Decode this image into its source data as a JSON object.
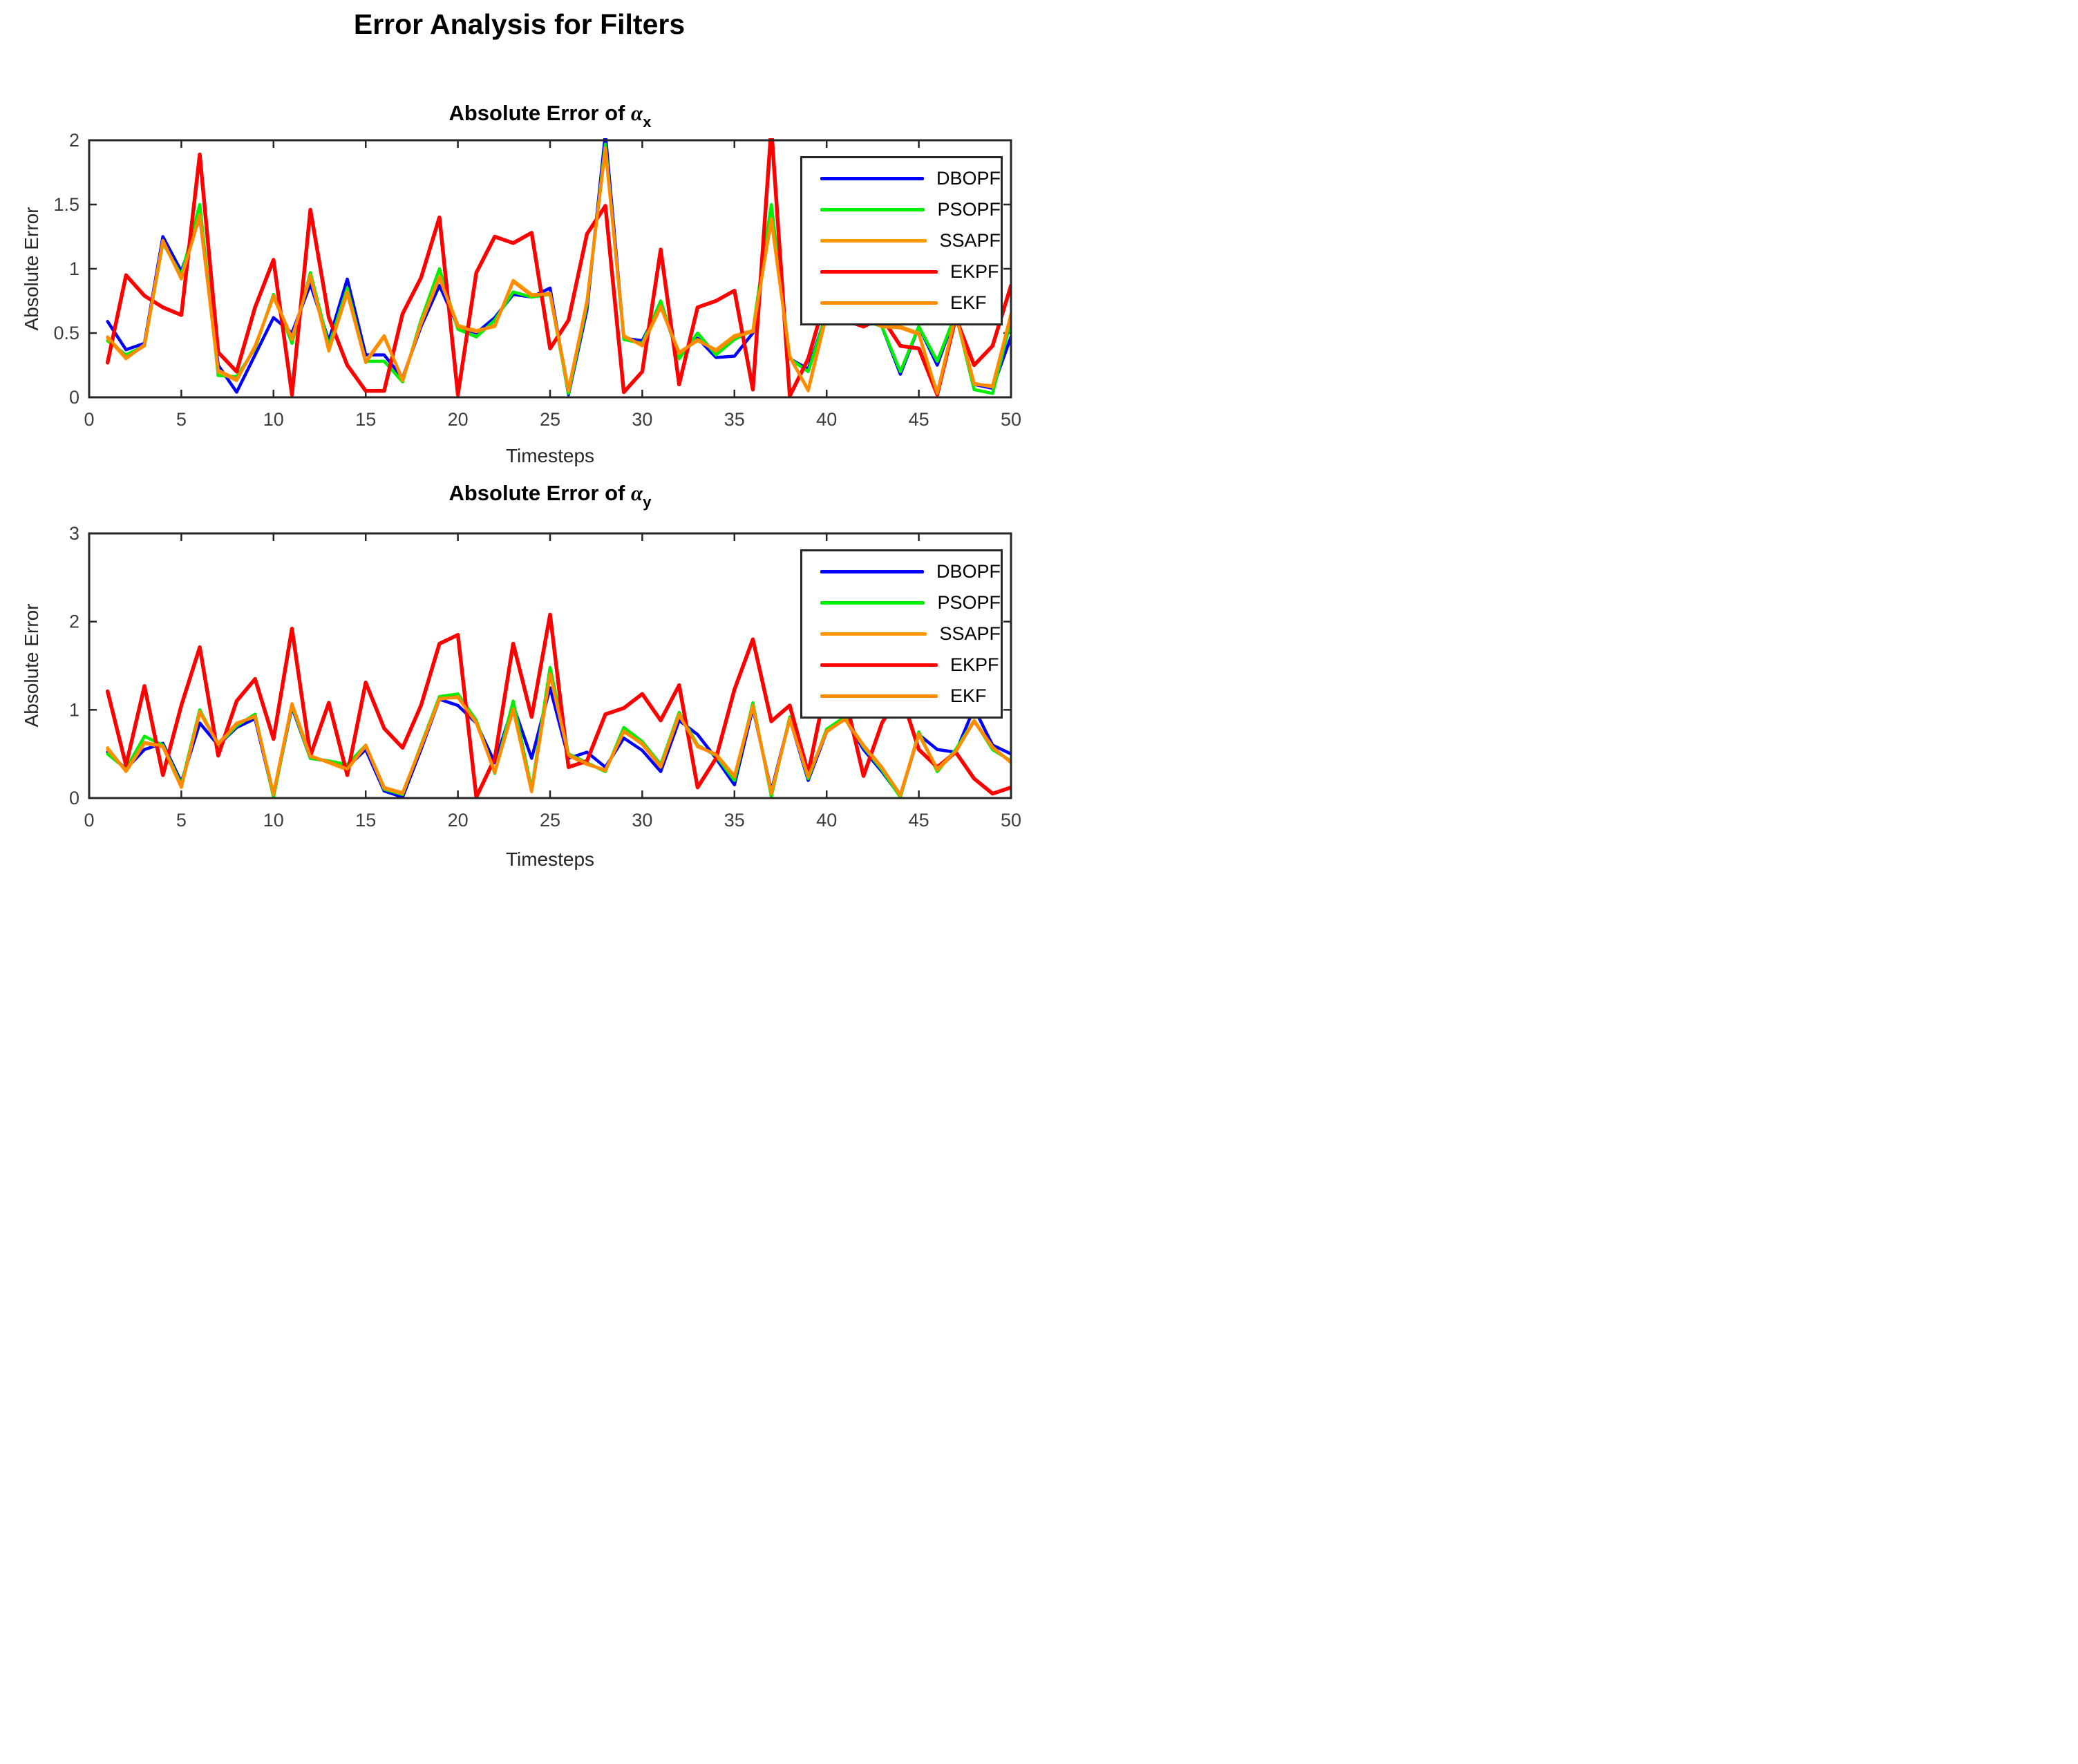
{
  "figure": {
    "title": "Error Analysis for Filters",
    "background_color": "#FFFFFF",
    "axis_color": "#262626",
    "tick_label_color": "#3D3D3D"
  },
  "chart_data": [
    {
      "type": "line",
      "title": {
        "prefix": "Absolute Error of ",
        "symbol": "α",
        "sub": "x"
      },
      "xlabel": "Timesteps",
      "ylabel": "Absolute Error",
      "xlim": [
        0,
        50
      ],
      "ylim": [
        0,
        2
      ],
      "x_tick_labels": [
        "0",
        "5",
        "10",
        "15",
        "20",
        "25",
        "30",
        "35",
        "40",
        "45",
        "50"
      ],
      "x_ticks": [
        0,
        5,
        10,
        15,
        20,
        25,
        30,
        35,
        40,
        45,
        50
      ],
      "y_tick_labels": [
        "0",
        "0.5",
        "1",
        "1.5",
        "2"
      ],
      "y_ticks": [
        0,
        0.5,
        1,
        1.5,
        2
      ],
      "grid": false,
      "legend_position": "northeast",
      "x": [
        1,
        2,
        3,
        4,
        5,
        6,
        7,
        8,
        9,
        10,
        11,
        12,
        13,
        14,
        15,
        16,
        17,
        18,
        19,
        20,
        21,
        22,
        23,
        24,
        25,
        26,
        27,
        28,
        29,
        30,
        31,
        32,
        33,
        34,
        35,
        36,
        37,
        38,
        39,
        40,
        41,
        42,
        43,
        44,
        45,
        46,
        47,
        48,
        49,
        50
      ],
      "series": [
        {
          "name": "DBOPF",
          "color": "#0000FF",
          "width": 4.5,
          "values": [
            0.59,
            0.37,
            0.42,
            1.25,
            0.98,
            1.4,
            0.25,
            0.04,
            0.33,
            0.62,
            0.5,
            0.88,
            0.44,
            0.92,
            0.33,
            0.33,
            0.15,
            0.55,
            0.87,
            0.55,
            0.5,
            0.62,
            0.8,
            0.78,
            0.85,
            0.02,
            0.68,
            2.05,
            0.46,
            0.44,
            0.72,
            0.32,
            0.46,
            0.31,
            0.32,
            0.5,
            1.47,
            0.3,
            0.22,
            0.65,
            0.72,
            0.62,
            0.55,
            0.18,
            0.55,
            0.25,
            0.65,
            0.1,
            0.07,
            0.47
          ]
        },
        {
          "name": "PSOPF",
          "color": "#00EE00",
          "width": 4.5,
          "values": [
            0.44,
            0.33,
            0.4,
            1.2,
            0.95,
            1.5,
            0.17,
            0.16,
            0.38,
            0.8,
            0.42,
            0.97,
            0.4,
            0.85,
            0.28,
            0.28,
            0.12,
            0.6,
            1.0,
            0.53,
            0.47,
            0.6,
            0.82,
            0.78,
            0.8,
            0.03,
            0.72,
            1.97,
            0.45,
            0.42,
            0.75,
            0.3,
            0.5,
            0.33,
            0.45,
            0.52,
            1.5,
            0.3,
            0.2,
            0.65,
            0.72,
            0.6,
            0.55,
            0.2,
            0.55,
            0.28,
            0.65,
            0.06,
            0.03,
            0.6
          ]
        },
        {
          "name": "SSAPF",
          "color": "#FF9800",
          "width": 4.5,
          "values": [
            0.46,
            0.3,
            0.41,
            1.22,
            0.92,
            1.42,
            0.2,
            0.13,
            0.4,
            0.78,
            0.45,
            0.95,
            0.36,
            0.82,
            0.28,
            0.48,
            0.13,
            0.58,
            0.94,
            0.56,
            0.52,
            0.55,
            0.91,
            0.8,
            0.8,
            0.05,
            0.75,
            1.93,
            0.48,
            0.4,
            0.7,
            0.35,
            0.44,
            0.37,
            0.48,
            0.52,
            1.39,
            0.32,
            0.05,
            0.64,
            0.71,
            0.62,
            0.56,
            0.55,
            0.5,
            0.02,
            0.65,
            0.11,
            0.08,
            0.65
          ]
        },
        {
          "name": "EKPF",
          "color": "#FF0000",
          "width": 5.5,
          "values": [
            0.27,
            0.95,
            0.79,
            0.7,
            0.64,
            1.89,
            0.35,
            0.2,
            0.7,
            1.07,
            0.02,
            1.46,
            0.62,
            0.25,
            0.05,
            0.05,
            0.65,
            0.93,
            1.4,
            0.02,
            0.97,
            1.25,
            1.2,
            1.28,
            0.38,
            0.6,
            1.27,
            1.49,
            0.04,
            0.2,
            1.15,
            0.1,
            0.7,
            0.75,
            0.83,
            0.06,
            2.1,
            0.01,
            0.3,
            0.8,
            0.6,
            0.55,
            0.62,
            0.4,
            0.38,
            0.02,
            0.62,
            0.25,
            0.4,
            0.87
          ]
        },
        {
          "name": "EKF",
          "color": "#FF8C00",
          "width": 4.5,
          "values": [
            0.47,
            0.31,
            0.4,
            1.21,
            0.93,
            1.41,
            0.21,
            0.14,
            0.39,
            0.79,
            0.46,
            0.94,
            0.37,
            0.81,
            0.27,
            0.47,
            0.14,
            0.57,
            0.93,
            0.55,
            0.51,
            0.56,
            0.9,
            0.79,
            0.81,
            0.06,
            0.74,
            1.94,
            0.47,
            0.41,
            0.71,
            0.34,
            0.45,
            0.36,
            0.47,
            0.51,
            1.38,
            0.31,
            0.06,
            0.65,
            0.7,
            0.61,
            0.55,
            0.54,
            0.49,
            0.03,
            0.64,
            0.1,
            0.09,
            0.64
          ]
        }
      ]
    },
    {
      "type": "line",
      "title": {
        "prefix": "Absolute Error of ",
        "symbol": "α",
        "sub": "y"
      },
      "xlabel": "Timesteps",
      "ylabel": "Absolute Error",
      "xlim": [
        0,
        50
      ],
      "ylim": [
        0,
        3
      ],
      "x_tick_labels": [
        "0",
        "5",
        "10",
        "15",
        "20",
        "25",
        "30",
        "35",
        "40",
        "45",
        "50"
      ],
      "x_ticks": [
        0,
        5,
        10,
        15,
        20,
        25,
        30,
        35,
        40,
        45,
        50
      ],
      "y_tick_labels": [
        "0",
        "1",
        "2",
        "3"
      ],
      "y_ticks": [
        0,
        1,
        2,
        3
      ],
      "grid": false,
      "legend_position": "northeast",
      "x": [
        1,
        2,
        3,
        4,
        5,
        6,
        7,
        8,
        9,
        10,
        11,
        12,
        13,
        14,
        15,
        16,
        17,
        18,
        19,
        20,
        21,
        22,
        23,
        24,
        25,
        26,
        27,
        28,
        29,
        30,
        31,
        32,
        33,
        34,
        35,
        36,
        37,
        38,
        39,
        40,
        41,
        42,
        43,
        44,
        45,
        46,
        47,
        48,
        49,
        50
      ],
      "series": [
        {
          "name": "DBOPF",
          "color": "#0000FF",
          "width": 4.5,
          "values": [
            0.52,
            0.33,
            0.55,
            0.62,
            0.18,
            0.85,
            0.6,
            0.8,
            0.9,
            0.02,
            1.03,
            0.45,
            0.42,
            0.35,
            0.55,
            0.08,
            0.01,
            0.55,
            1.12,
            1.05,
            0.85,
            0.4,
            1.05,
            0.45,
            1.25,
            0.45,
            0.52,
            0.35,
            0.68,
            0.54,
            0.3,
            0.88,
            0.72,
            0.45,
            0.15,
            1.02,
            0.08,
            0.9,
            0.2,
            0.75,
            0.9,
            0.55,
            0.3,
            0.02,
            0.72,
            0.55,
            0.52,
            1.02,
            0.6,
            0.5
          ]
        },
        {
          "name": "PSOPF",
          "color": "#00EE00",
          "width": 4.5,
          "values": [
            0.5,
            0.33,
            0.7,
            0.6,
            0.15,
            1.0,
            0.6,
            0.82,
            0.95,
            0.01,
            1.05,
            0.45,
            0.42,
            0.38,
            0.6,
            0.1,
            0.04,
            0.6,
            1.15,
            1.18,
            0.88,
            0.28,
            1.1,
            0.1,
            1.48,
            0.5,
            0.4,
            0.3,
            0.8,
            0.64,
            0.38,
            0.97,
            0.6,
            0.48,
            0.2,
            1.08,
            0.02,
            0.92,
            0.22,
            0.78,
            0.92,
            0.58,
            0.32,
            0.01,
            0.75,
            0.3,
            0.55,
            0.88,
            0.55,
            0.42
          ]
        },
        {
          "name": "SSAPF",
          "color": "#FF9800",
          "width": 4.5,
          "values": [
            0.57,
            0.3,
            0.62,
            0.58,
            0.12,
            0.98,
            0.62,
            0.85,
            0.92,
            0.05,
            1.07,
            0.48,
            0.4,
            0.32,
            0.6,
            0.12,
            0.06,
            0.58,
            1.12,
            1.15,
            0.85,
            0.3,
            1.0,
            0.07,
            1.4,
            0.48,
            0.38,
            0.32,
            0.75,
            0.62,
            0.36,
            0.95,
            0.58,
            0.5,
            0.25,
            1.05,
            0.05,
            0.9,
            0.25,
            0.75,
            0.9,
            0.6,
            0.35,
            0.03,
            0.72,
            0.32,
            0.52,
            0.88,
            0.58,
            0.4
          ]
        },
        {
          "name": "EKPF",
          "color": "#FF0000",
          "width": 5.5,
          "values": [
            1.21,
            0.37,
            1.27,
            0.26,
            1.05,
            1.71,
            0.48,
            1.1,
            1.35,
            0.67,
            1.92,
            0.48,
            1.08,
            0.26,
            1.31,
            0.79,
            0.57,
            1.05,
            1.75,
            1.85,
            0.01,
            0.45,
            1.75,
            0.92,
            2.08,
            0.35,
            0.42,
            0.95,
            1.02,
            1.18,
            0.88,
            1.28,
            0.12,
            0.45,
            1.23,
            1.8,
            0.87,
            1.05,
            0.28,
            1.3,
            1.15,
            0.25,
            0.85,
            1.2,
            0.55,
            0.35,
            0.52,
            0.22,
            0.05,
            0.12
          ]
        },
        {
          "name": "EKF",
          "color": "#FF8C00",
          "width": 4.5,
          "values": [
            0.55,
            0.31,
            0.63,
            0.59,
            0.13,
            0.97,
            0.61,
            0.84,
            0.93,
            0.04,
            1.06,
            0.47,
            0.41,
            0.33,
            0.59,
            0.11,
            0.05,
            0.59,
            1.13,
            1.14,
            0.86,
            0.29,
            1.01,
            0.08,
            1.41,
            0.49,
            0.39,
            0.31,
            0.76,
            0.61,
            0.35,
            0.94,
            0.59,
            0.49,
            0.24,
            1.04,
            0.06,
            0.89,
            0.24,
            0.76,
            0.89,
            0.59,
            0.34,
            0.04,
            0.73,
            0.33,
            0.53,
            0.87,
            0.57,
            0.41
          ]
        }
      ]
    }
  ]
}
